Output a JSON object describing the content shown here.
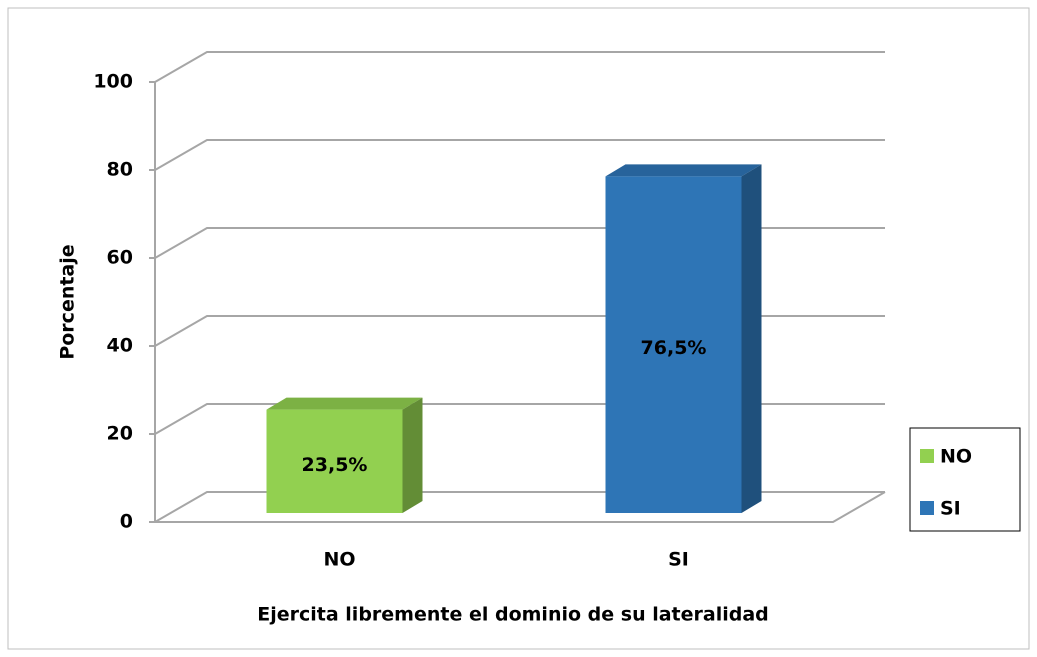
{
  "chart_data": {
    "type": "bar3d",
    "categories": [
      "NO",
      "SI"
    ],
    "values": [
      23.5,
      76.5
    ],
    "value_labels": [
      "23,5%",
      "76,5%"
    ],
    "colors": [
      "#92d050",
      "#2e75b6"
    ],
    "xlabel": "Ejercita libremente el dominio de su lateralidad",
    "ylabel": "Porcentaje",
    "ylim": [
      0,
      100
    ],
    "yticks": [
      0,
      20,
      40,
      60,
      80,
      100
    ],
    "grid": true,
    "legend": "right"
  }
}
